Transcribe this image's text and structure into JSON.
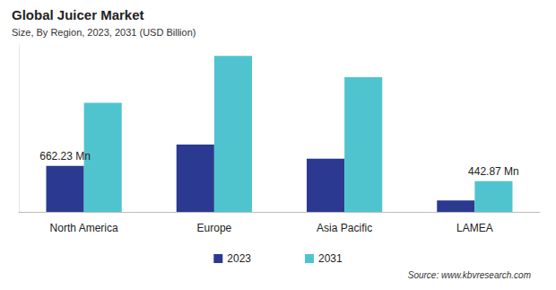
{
  "chart_data": {
    "type": "bar",
    "title": "Global Juicer Market",
    "subtitle": "Size, By Region, 2023, 2031 (USD Billion)",
    "source": "Source: www.kbvresearch.com",
    "categories": [
      "North America",
      "Europe",
      "Asia Pacific",
      "LAMEA"
    ],
    "series": [
      {
        "name": "2023",
        "color": "#2b3990",
        "values": [
          662.23,
          968,
          764,
          166
        ],
        "value_labels": [
          "662.23 Mn",
          null,
          null,
          null
        ]
      },
      {
        "name": "2031",
        "color": "#4fc4cf",
        "values": [
          1567,
          2242,
          1936,
          442.87
        ],
        "value_labels": [
          null,
          null,
          null,
          "442.87 Mn"
        ]
      }
    ],
    "ylim": [
      0,
      2400
    ],
    "tick_labels": "x",
    "grid": false,
    "legend": "bottom"
  }
}
